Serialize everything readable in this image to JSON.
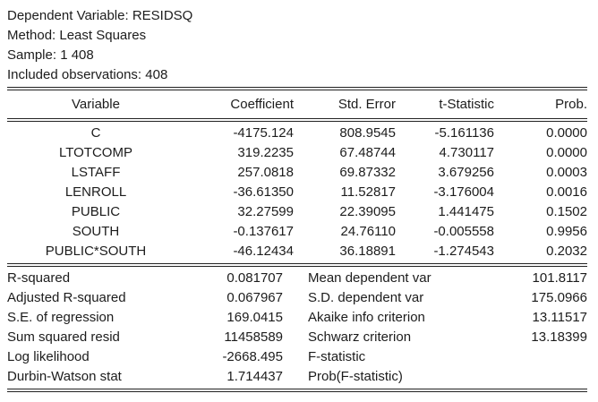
{
  "report_header": {
    "dependent_variable_line": "Dependent Variable: RESIDSQ",
    "method_line": "Method: Least Squares",
    "sample_line": "Sample: 1 408",
    "observations_line": "Included observations: 408"
  },
  "coef_table": {
    "columns": {
      "variable": "Variable",
      "coefficient": "Coefficient",
      "std_error": "Std. Error",
      "t_statistic": "t-Statistic",
      "prob": "Prob."
    },
    "rows": [
      {
        "variable": "C",
        "coefficient": "-4175.124",
        "std_error": "808.9545",
        "t_statistic": "-5.161136",
        "prob": "0.0000"
      },
      {
        "variable": "LTOTCOMP",
        "coefficient": "319.2235",
        "std_error": "67.48744",
        "t_statistic": "4.730117",
        "prob": "0.0000"
      },
      {
        "variable": "LSTAFF",
        "coefficient": "257.0818",
        "std_error": "69.87332",
        "t_statistic": "3.679256",
        "prob": "0.0003"
      },
      {
        "variable": "LENROLL",
        "coefficient": "-36.61350",
        "std_error": "11.52817",
        "t_statistic": "-3.176004",
        "prob": "0.0016"
      },
      {
        "variable": "PUBLIC",
        "coefficient": "32.27599",
        "std_error": "22.39095",
        "t_statistic": "1.441475",
        "prob": "0.1502"
      },
      {
        "variable": "SOUTH",
        "coefficient": "-0.137617",
        "std_error": "24.76110",
        "t_statistic": "-0.005558",
        "prob": "0.9956"
      },
      {
        "variable": "PUBLIC*SOUTH",
        "coefficient": "-46.12434",
        "std_error": "36.18891",
        "t_statistic": "-1.274543",
        "prob": "0.2032"
      }
    ]
  },
  "summary_stats": {
    "rows": [
      {
        "left_label": "R-squared",
        "left_value": "0.081707",
        "right_label": "Mean dependent var",
        "right_value": "101.8117"
      },
      {
        "left_label": "Adjusted R-squared",
        "left_value": "0.067967",
        "right_label": "S.D. dependent var",
        "right_value": "175.0966"
      },
      {
        "left_label": "S.E. of regression",
        "left_value": "169.0415",
        "right_label": "Akaike info criterion",
        "right_value": "13.11517"
      },
      {
        "left_label": "Sum squared resid",
        "left_value": "11458589",
        "right_label": "Schwarz criterion",
        "right_value": "13.18399"
      },
      {
        "left_label": "Log likelihood",
        "left_value": "-2668.495",
        "right_label": "F-statistic",
        "right_value": ""
      },
      {
        "left_label": "Durbin-Watson stat",
        "left_value": "1.714437",
        "right_label": "Prob(F-statistic)",
        "right_value": ""
      }
    ]
  },
  "colors": {
    "background": "#ffffff",
    "text": "#1c1c1c",
    "rule": "#222222"
  }
}
